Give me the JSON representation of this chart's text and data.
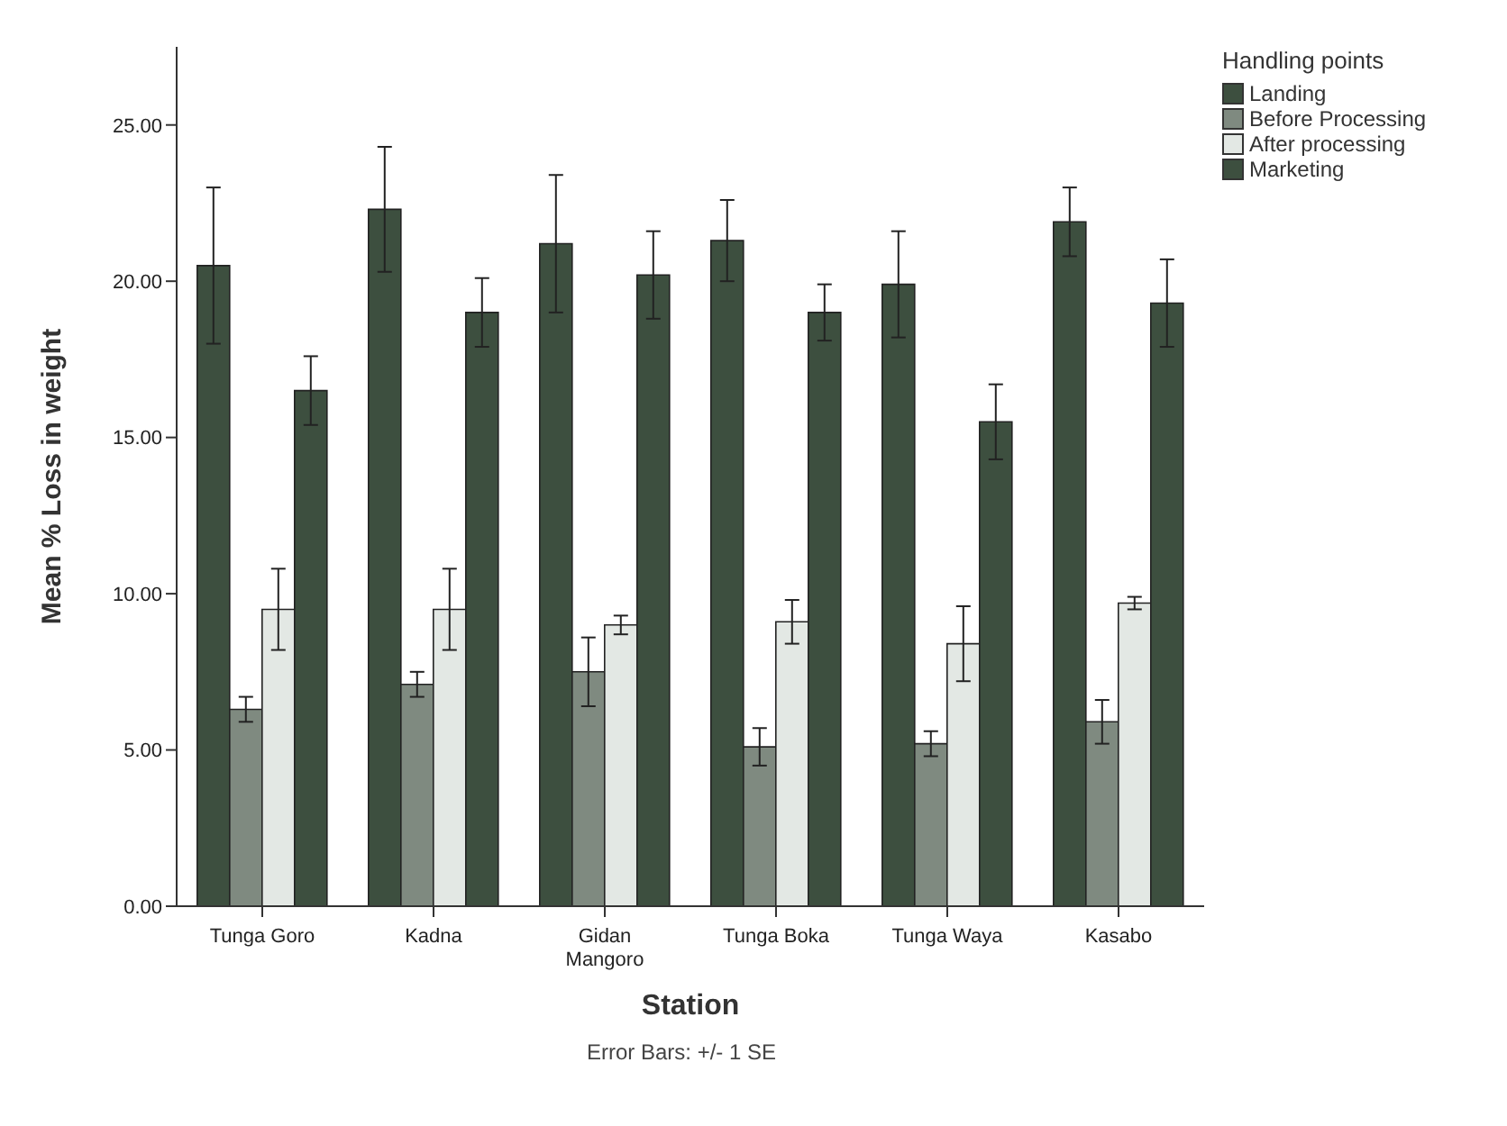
{
  "chart_data": {
    "type": "bar",
    "xlabel": "Station",
    "ylabel": "Mean % Loss in weight",
    "legend_title": "Handling points",
    "categories": [
      "Tunga Goro",
      "Kadna",
      "Gidan Mangoro",
      "Tunga Boka",
      "Tunga Waya",
      "Kasabo"
    ],
    "series": [
      {
        "name": "Landing",
        "color": "#3d4f3f",
        "values": [
          20.5,
          22.3,
          21.2,
          21.3,
          19.9,
          21.9
        ],
        "errors": [
          2.5,
          2.0,
          2.2,
          1.3,
          1.7,
          1.1
        ]
      },
      {
        "name": "Before Processing",
        "color": "#7f8a80",
        "values": [
          6.3,
          7.1,
          7.5,
          5.1,
          5.2,
          5.9
        ],
        "errors": [
          0.4,
          0.4,
          1.1,
          0.6,
          0.4,
          0.7
        ]
      },
      {
        "name": "After processing",
        "color": "#e3e8e4",
        "values": [
          9.5,
          9.5,
          9.0,
          9.1,
          8.4,
          9.7
        ],
        "errors": [
          1.3,
          1.3,
          0.3,
          0.7,
          1.2,
          0.2
        ]
      },
      {
        "name": "Marketing",
        "color": "#3d4f3f",
        "values": [
          16.5,
          19.0,
          20.2,
          19.0,
          15.5,
          19.3
        ],
        "errors": [
          1.1,
          1.1,
          1.4,
          0.9,
          1.2,
          1.4
        ]
      }
    ],
    "ylim": [
      0,
      27.5
    ],
    "yticks": [
      {
        "value": 0,
        "label": "0.00"
      },
      {
        "value": 5,
        "label": "5.00"
      },
      {
        "value": 10,
        "label": "10.00"
      },
      {
        "value": 15,
        "label": "15.00"
      },
      {
        "value": 20,
        "label": "20.00"
      },
      {
        "value": 25,
        "label": "25.00"
      }
    ],
    "grid": false,
    "legend": "top right",
    "annotations": [
      "Error Bars: +/- 1 SE"
    ]
  }
}
